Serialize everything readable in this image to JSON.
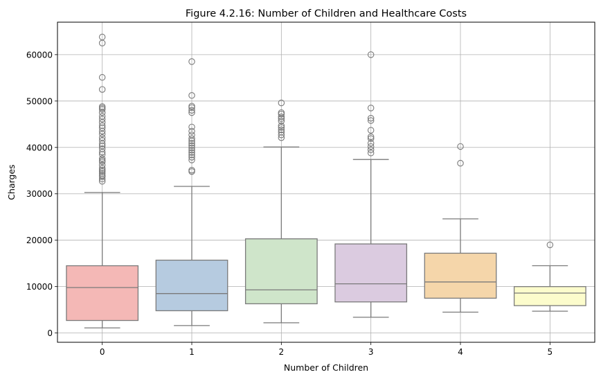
{
  "chart_data": {
    "type": "box",
    "title": "Figure 4.2.16: Number of Children and Healthcare Costs",
    "xlabel": "Number of Children",
    "ylabel": "Charges",
    "ylim": [
      -2000,
      67000
    ],
    "yticks": [
      0,
      10000,
      20000,
      30000,
      40000,
      50000,
      60000
    ],
    "grid": true,
    "categories": [
      "0",
      "1",
      "2",
      "3",
      "4",
      "5"
    ],
    "boxes": [
      {
        "category": "0",
        "color": "#f4b8b6",
        "whisker_low": 1100,
        "q1": 2700,
        "median": 9800,
        "q3": 14500,
        "whisker_high": 30300,
        "outliers": [
          32700,
          33200,
          33700,
          34000,
          34400,
          34800,
          35100,
          35500,
          36200,
          36900,
          37200,
          37600,
          38500,
          39000,
          39700,
          40300,
          40800,
          41500,
          42100,
          42900,
          43500,
          44200,
          44700,
          45400,
          46100,
          46700,
          47500,
          48200,
          48500,
          48800,
          52500,
          55100,
          62500,
          63800
        ]
      },
      {
        "category": "1",
        "color": "#b6cbe0",
        "whisker_low": 1600,
        "q1": 4800,
        "median": 8500,
        "q3": 15700,
        "whisker_high": 31600,
        "outliers": [
          34800,
          35100,
          37300,
          37900,
          38400,
          38900,
          39400,
          39900,
          40400,
          40900,
          41400,
          41900,
          42700,
          43500,
          44400,
          47500,
          48000,
          48600,
          48900,
          51200,
          58500
        ]
      },
      {
        "category": "2",
        "color": "#cfe5ca",
        "whisker_low": 2200,
        "q1": 6300,
        "median": 9300,
        "q3": 20300,
        "whisker_high": 40100,
        "outliers": [
          42100,
          42700,
          43300,
          43800,
          44300,
          44700,
          45700,
          46200,
          46600,
          47200,
          47500,
          49600
        ]
      },
      {
        "category": "3",
        "color": "#dbcbe0",
        "whisker_low": 3400,
        "q1": 6700,
        "median": 10600,
        "q3": 19200,
        "whisker_high": 37400,
        "outliers": [
          38800,
          39500,
          40200,
          40900,
          41900,
          42300,
          43700,
          45800,
          46300,
          48500,
          60000
        ]
      },
      {
        "category": "4",
        "color": "#f5d6aa",
        "whisker_low": 4500,
        "q1": 7500,
        "median": 11000,
        "q3": 17200,
        "whisker_high": 24600,
        "outliers": [
          36600,
          40200
        ]
      },
      {
        "category": "5",
        "color": "#fcfccc",
        "whisker_low": 4700,
        "q1": 5900,
        "median": 8600,
        "q3": 10000,
        "whisker_high": 14500,
        "outliers": [
          19000
        ]
      }
    ]
  }
}
